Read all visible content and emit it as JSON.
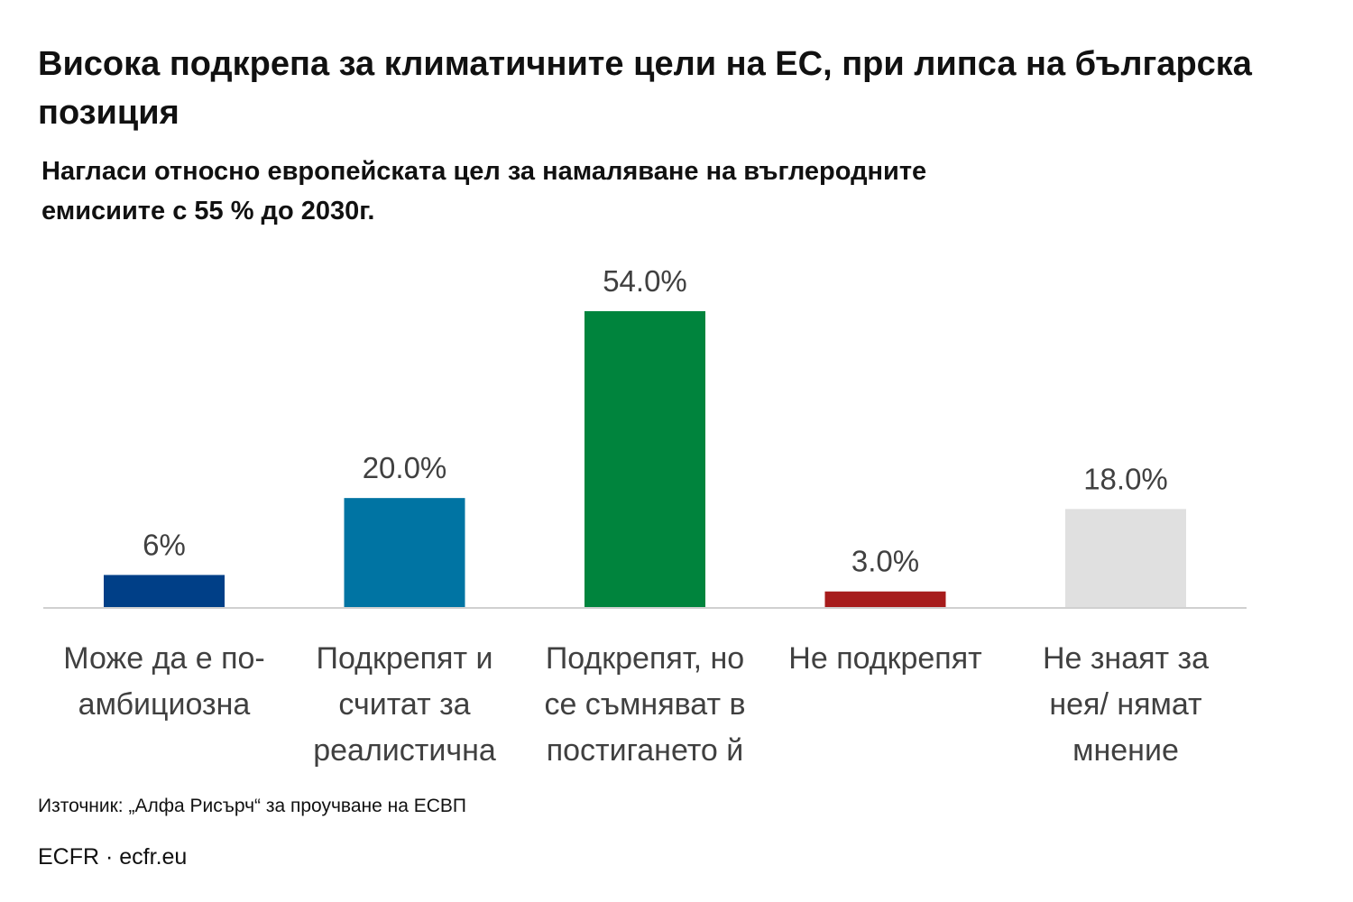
{
  "title": "Висока подкрепа за климатичните цели на ЕС, при липса на българска позиция",
  "subtitle": "Нагласи относно европейската цел за намаляване на въглеродните емисиите с 55 % до 2030г.",
  "source": "Източник: „Алфа Рисърч“ за проучване на ЕСВП",
  "footer": "ECFR · ecfr.eu",
  "chart_data": {
    "type": "bar",
    "title": "Висока подкрепа за климатичните цели на ЕС, при липса на българска позиция",
    "subtitle": "Нагласи относно европейската цел за намаляване на въглеродните емисиите с 55 % до 2030г.",
    "xlabel": "",
    "ylabel": "",
    "ylim": [
      0,
      60
    ],
    "grid": false,
    "legend": "none",
    "categories": [
      [
        "Може да е по-",
        "амбициозна"
      ],
      [
        "Подкрепят и",
        "считат за",
        "реалистична"
      ],
      [
        "Подкрепят, но",
        "се съмняват в",
        "постигането й"
      ],
      [
        "Не подкрепят"
      ],
      [
        "Не знаят за",
        "нея/ нямат",
        "мнение"
      ]
    ],
    "values": [
      6,
      20,
      54,
      3,
      18
    ],
    "value_labels": [
      "6%",
      "20.0%",
      "54.0%",
      "3.0%",
      "18.0%"
    ],
    "colors": [
      "#003f87",
      "#0074a3",
      "#00843d",
      "#a71c1c",
      "#e0e0e0"
    ],
    "axis_color": "#d0d0d0",
    "label_color": "#404040"
  }
}
